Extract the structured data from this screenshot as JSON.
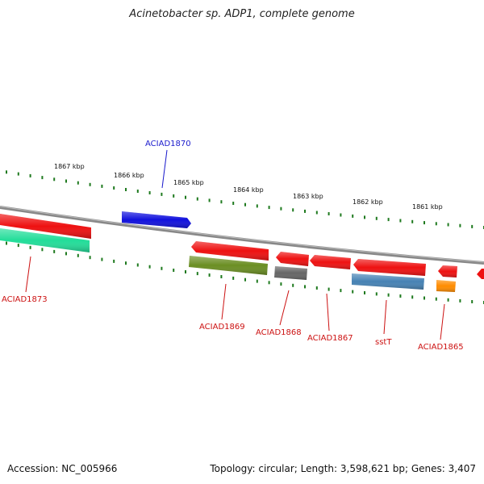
{
  "title": "Acinetobacter sp. ADP1, complete genome",
  "footer": {
    "accession": "Accession: NC_005966",
    "summary": "Topology: circular; Length: 3,598,621 bp; Genes: 3,407"
  },
  "scale": {
    "ticks": [
      "1867 kbp",
      "1866 kbp",
      "1865 kbp",
      "1864 kbp",
      "1863 kbp",
      "1862 kbp",
      "1861 kbp"
    ]
  },
  "colors": {
    "backbone": "#888888",
    "tick": "#1f7a1f",
    "label_forward": "#1a1acc",
    "label_reverse": "#cc1111"
  },
  "genes": [
    {
      "id": "ACIAD1873",
      "strand": "reverse",
      "color": "#ee1111",
      "label_color": "#cc1111"
    },
    {
      "id": "ACIAD1873-orf",
      "strand": "reverse",
      "color": "#22dd99",
      "label_color": null
    },
    {
      "id": "ACIAD1870",
      "strand": "forward",
      "color": "#1111dd",
      "label_color": "#1a1acc"
    },
    {
      "id": "ACIAD1869",
      "strand": "reverse",
      "color": "#ee1111",
      "label_color": "#cc1111"
    },
    {
      "id": "ACIAD1869-orf",
      "strand": "reverse",
      "color": "#6b8e23",
      "label_color": null
    },
    {
      "id": "ACIAD1868",
      "strand": "reverse",
      "color": "#ee1111",
      "label_color": "#cc1111"
    },
    {
      "id": "ACIAD1868-orf",
      "strand": "reverse",
      "color": "#666666",
      "label_color": null
    },
    {
      "id": "ACIAD1867",
      "strand": "reverse",
      "color": "#ee1111",
      "label_color": "#cc1111"
    },
    {
      "id": "sstT",
      "strand": "reverse",
      "color": "#ee1111",
      "label_color": "#cc1111"
    },
    {
      "id": "sstT-orf",
      "strand": "reverse",
      "color": "#4682b4",
      "label_color": null
    },
    {
      "id": "ACIAD1865",
      "strand": "reverse",
      "color": "#ee1111",
      "label_color": "#cc1111"
    },
    {
      "id": "ACIAD1865-orf",
      "strand": "reverse",
      "color": "#ff8c00",
      "label_color": null
    },
    {
      "id": "ACIAD1864",
      "strand": "reverse",
      "color": "#ee1111",
      "label_color": null
    }
  ],
  "gene_labels": [
    "ACIAD1873",
    "ACIAD1870",
    "ACIAD1869",
    "ACIAD1868",
    "ACIAD1867",
    "sstT",
    "ACIAD1865"
  ]
}
